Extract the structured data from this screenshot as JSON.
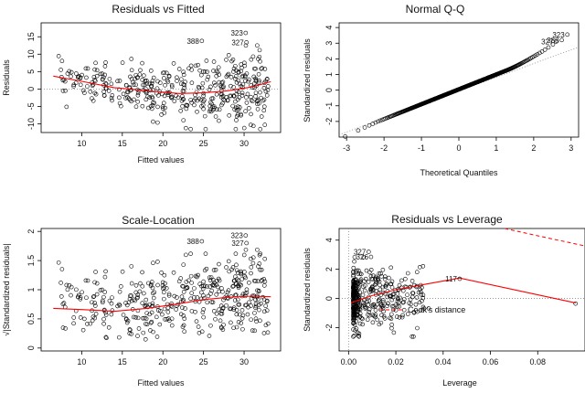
{
  "chart_data": [
    {
      "type": "scatter",
      "title": "Residuals vs Fitted",
      "xlabel": "Fitted values",
      "ylabel": "Residuals",
      "xlim": [
        5,
        34.5
      ],
      "ylim": [
        -12.5,
        19
      ],
      "xticks": [
        10,
        15,
        20,
        25,
        30
      ],
      "yticks": [
        -10,
        -5,
        0,
        5,
        10,
        15
      ],
      "reference_line": {
        "value": 0,
        "style": "dotted"
      },
      "labeled_points": [
        {
          "label": "388",
          "x": 24.8,
          "y": 13.8
        },
        {
          "label": "323",
          "x": 30.2,
          "y": 16.1
        },
        {
          "label": "327",
          "x": 30.3,
          "y": 13.4
        }
      ],
      "smooth_line": {
        "color": "#ff0000",
        "x": [
          6.5,
          10,
          14,
          18,
          22,
          25,
          28,
          31,
          33.3
        ],
        "y": [
          3.7,
          2.2,
          0.4,
          -0.5,
          -1.3,
          -1.1,
          -0.5,
          0.6,
          2.1
        ]
      }
    },
    {
      "type": "scatter",
      "title": "Normal Q-Q",
      "xlabel": "Theoretical Quantiles",
      "ylabel": "Standardized residuals",
      "xlim": [
        -3.2,
        3.2
      ],
      "ylim": [
        -3,
        4.3
      ],
      "xticks": [
        -3,
        -2,
        -1,
        0,
        1,
        2,
        3
      ],
      "yticks": [
        -2,
        -1,
        0,
        1,
        2,
        3,
        4
      ],
      "reference_line": {
        "from": [
          -3.2,
          -2.85
        ],
        "to": [
          3.2,
          2.75
        ],
        "style": "dotted"
      },
      "labeled_points": [
        {
          "label": "323",
          "x": 2.9,
          "y": 3.55
        },
        {
          "label": "388",
          "x": 2.75,
          "y": 3.2
        },
        {
          "label": "327",
          "x": 2.6,
          "y": 3.1
        }
      ]
    },
    {
      "type": "scatter",
      "title": "Scale-Location",
      "xlabel": "Fitted values",
      "ylabel": "√|Standardized residuals|",
      "xlim": [
        5,
        34.5
      ],
      "ylim": [
        -0.05,
        2.05
      ],
      "xticks": [
        10,
        15,
        20,
        25,
        30
      ],
      "yticks": [
        0.0,
        0.5,
        1.0,
        1.5,
        2.0
      ],
      "labeled_points": [
        {
          "label": "388",
          "x": 24.8,
          "y": 1.83
        },
        {
          "label": "323",
          "x": 30.2,
          "y": 1.93
        },
        {
          "label": "327",
          "x": 30.3,
          "y": 1.8
        }
      ],
      "smooth_line": {
        "color": "#ff0000",
        "x": [
          6.5,
          10,
          14,
          18,
          22,
          25,
          28,
          31,
          33.3
        ],
        "y": [
          0.68,
          0.66,
          0.63,
          0.68,
          0.76,
          0.83,
          0.87,
          0.89,
          0.88
        ]
      }
    },
    {
      "type": "scatter",
      "title": "Residuals vs Leverage",
      "xlabel": "Leverage",
      "ylabel": "Standardized residuals",
      "xlim": [
        -0.004,
        0.1
      ],
      "ylim": [
        -3.6,
        4.8
      ],
      "xticks": [
        0.0,
        0.02,
        0.04,
        0.06,
        0.08
      ],
      "yticks": [
        -2,
        0,
        2,
        4
      ],
      "legend": "Cook's distance",
      "labeled_points": [
        {
          "label": "327",
          "x": 0.0085,
          "y": 3.2
        },
        {
          "label": "326",
          "x": 0.0095,
          "y": 2.85
        },
        {
          "label": "117",
          "x": 0.047,
          "y": 1.35
        }
      ],
      "smooth_line": {
        "color": "#ff0000",
        "x": [
          0.001,
          0.01,
          0.02,
          0.03,
          0.047,
          0.096
        ],
        "y": [
          -0.3,
          0.2,
          0.6,
          0.9,
          1.4,
          -0.3
        ]
      },
      "cooks_contour": {
        "color": "#ff0000",
        "style": "dashed",
        "x": [
          0.066,
          0.08,
          0.1
        ],
        "y": [
          4.8,
          4.3,
          3.6
        ]
      }
    }
  ]
}
